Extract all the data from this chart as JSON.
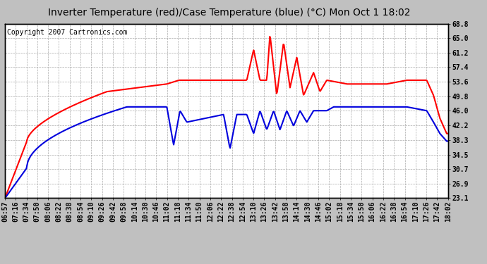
{
  "title": "Inverter Temperature (red)/Case Temperature (blue) (°C) Mon Oct 1 18:02",
  "copyright": "Copyright 2007 Cartronics.com",
  "ylabel_right_ticks": [
    23.1,
    26.9,
    30.7,
    34.5,
    38.3,
    42.2,
    46.0,
    49.8,
    53.6,
    57.4,
    61.2,
    65.0,
    68.8
  ],
  "ymin": 23.1,
  "ymax": 68.8,
  "x_tick_labels": [
    "06:57",
    "07:16",
    "07:34",
    "07:50",
    "08:06",
    "08:22",
    "08:38",
    "08:54",
    "09:10",
    "09:26",
    "09:42",
    "09:58",
    "10:14",
    "10:30",
    "10:46",
    "11:02",
    "11:18",
    "11:34",
    "11:50",
    "12:06",
    "12:22",
    "12:38",
    "12:54",
    "13:10",
    "13:26",
    "13:42",
    "13:58",
    "14:14",
    "14:30",
    "14:46",
    "15:02",
    "15:18",
    "15:34",
    "15:50",
    "16:06",
    "16:22",
    "16:38",
    "16:54",
    "17:10",
    "17:26",
    "17:42",
    "18:02"
  ],
  "background_color": "#c0c0c0",
  "plot_bg_color": "#ffffff",
  "grid_color": "#aaaaaa",
  "red_color": "#ff0000",
  "blue_color": "#0000dd",
  "title_fontsize": 10,
  "tick_fontsize": 7,
  "copyright_fontsize": 7,
  "line_width": 1.5
}
